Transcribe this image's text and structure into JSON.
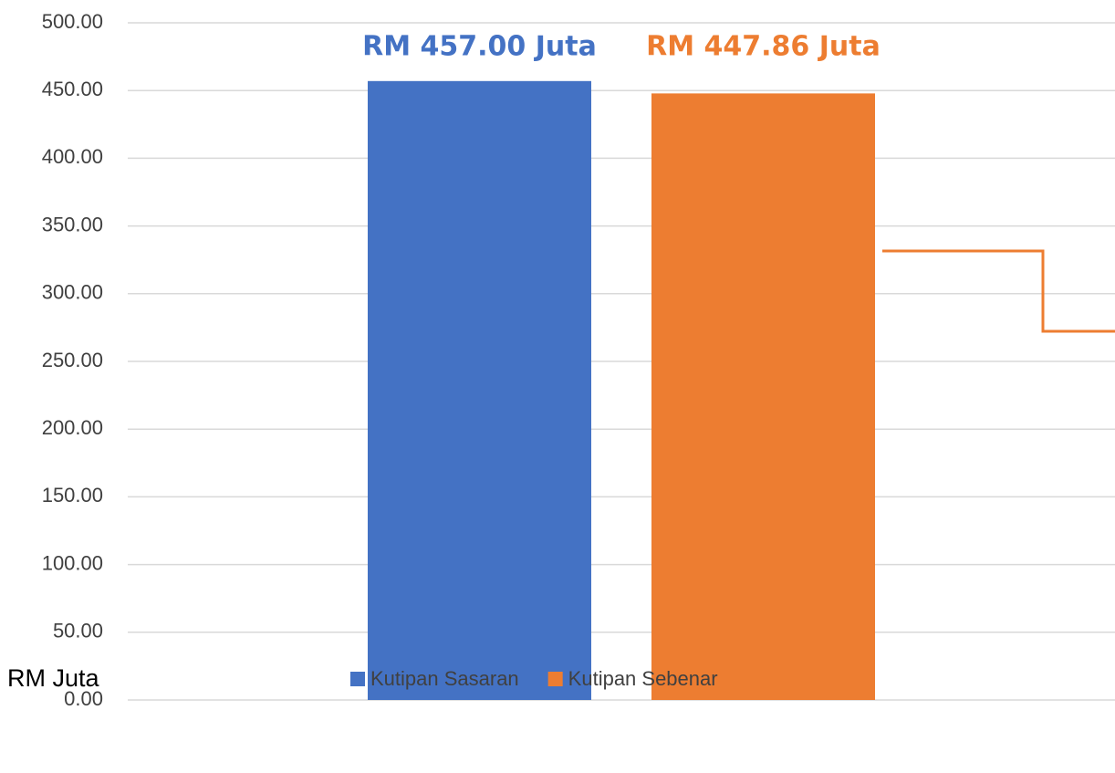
{
  "chart_data": {
    "type": "bar",
    "categories": [
      null
    ],
    "series": [
      {
        "name": "Kutipan Sasaran",
        "color": "#4472c4",
        "values": [
          457
        ],
        "value_labels": [
          "RM 457.00 Juta"
        ]
      },
      {
        "name": "Kutipan Sebenar",
        "color": "#ed7d31",
        "values": [
          447.86
        ],
        "value_labels": [
          "RM 447.86 Juta"
        ]
      }
    ],
    "y_label": "RM Juta",
    "ylim": [
      0,
      500
    ],
    "yticks": [
      {
        "value": 0,
        "label": "0.00"
      },
      {
        "value": 50,
        "label": "50.00"
      },
      {
        "value": 100,
        "label": "100.00"
      },
      {
        "value": 150,
        "label": "150.00"
      },
      {
        "value": 200,
        "label": "200.00"
      },
      {
        "value": 250,
        "label": "250.00"
      },
      {
        "value": 300,
        "label": "300.00"
      },
      {
        "value": 350,
        "label": "350.00"
      },
      {
        "value": 400,
        "label": "400.00"
      },
      {
        "value": 450,
        "label": "450.00"
      },
      {
        "value": 500,
        "label": "500.00"
      }
    ],
    "grid": true,
    "legend": "bottom"
  }
}
